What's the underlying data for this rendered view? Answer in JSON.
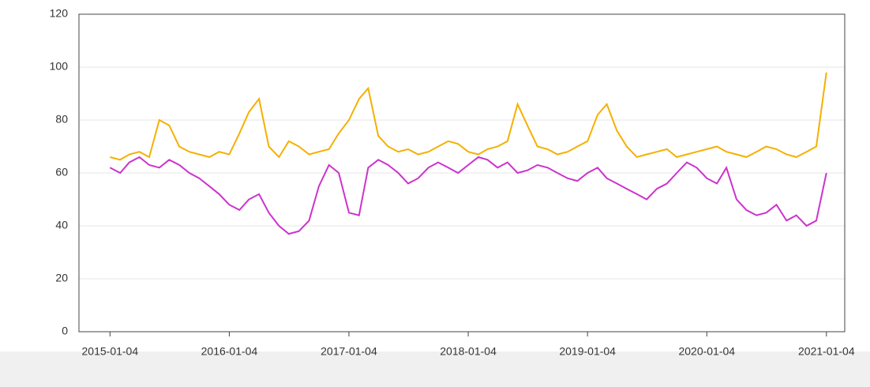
{
  "chart_data": {
    "type": "line",
    "x": [
      "2015-01-04",
      "2015-02-04",
      "2015-03-04",
      "2015-04-04",
      "2015-05-04",
      "2015-06-04",
      "2015-07-04",
      "2015-08-04",
      "2015-09-04",
      "2015-10-04",
      "2015-11-04",
      "2015-12-04",
      "2016-01-04",
      "2016-02-04",
      "2016-03-04",
      "2016-04-04",
      "2016-05-04",
      "2016-06-04",
      "2016-07-04",
      "2016-08-04",
      "2016-09-04",
      "2016-10-04",
      "2016-11-04",
      "2016-12-04",
      "2017-01-04",
      "2017-02-04",
      "2017-03-04",
      "2017-04-04",
      "2017-05-04",
      "2017-06-04",
      "2017-07-04",
      "2017-08-04",
      "2017-09-04",
      "2017-10-04",
      "2017-11-04",
      "2017-12-04",
      "2018-01-04",
      "2018-02-04",
      "2018-03-04",
      "2018-04-04",
      "2018-05-04",
      "2018-06-04",
      "2018-07-04",
      "2018-08-04",
      "2018-09-04",
      "2018-10-04",
      "2018-11-04",
      "2018-12-04",
      "2019-01-04",
      "2019-02-04",
      "2019-03-04",
      "2019-04-04",
      "2019-05-04",
      "2019-06-04",
      "2019-07-04",
      "2019-08-04",
      "2019-09-04",
      "2019-10-04",
      "2019-11-04",
      "2019-12-04",
      "2020-01-04",
      "2020-02-04",
      "2020-03-04",
      "2020-04-04",
      "2020-05-04",
      "2020-06-04",
      "2020-07-04",
      "2020-08-04",
      "2020-09-04",
      "2020-10-04",
      "2020-11-04",
      "2020-12-04",
      "2021-01-04"
    ],
    "series": [
      {
        "color": "#f5b000",
        "values": [
          66,
          65,
          67,
          68,
          66,
          80,
          78,
          70,
          68,
          67,
          66,
          68,
          67,
          75,
          83,
          88,
          70,
          66,
          72,
          70,
          67,
          68,
          69,
          75,
          80,
          88,
          92,
          74,
          70,
          68,
          69,
          67,
          68,
          70,
          72,
          71,
          68,
          67,
          69,
          70,
          72,
          86,
          78,
          70,
          69,
          67,
          68,
          70,
          72,
          82,
          86,
          76,
          70,
          66,
          67,
          68,
          69,
          66,
          67,
          68,
          69,
          70,
          68,
          67,
          66,
          68,
          70,
          69,
          67,
          66,
          68,
          70,
          98
        ]
      },
      {
        "color": "#cc33cc",
        "values": [
          62,
          60,
          64,
          66,
          63,
          62,
          65,
          63,
          60,
          58,
          55,
          52,
          48,
          46,
          50,
          52,
          45,
          40,
          37,
          38,
          42,
          55,
          63,
          60,
          45,
          44,
          62,
          65,
          63,
          60,
          56,
          58,
          62,
          64,
          62,
          60,
          63,
          66,
          65,
          62,
          64,
          60,
          61,
          63,
          62,
          60,
          58,
          57,
          60,
          62,
          58,
          56,
          54,
          52,
          50,
          54,
          56,
          60,
          64,
          62,
          58,
          56,
          62,
          50,
          46,
          44,
          45,
          48,
          42,
          44,
          40,
          42,
          60
        ]
      }
    ],
    "xlim": [
      "2014-10-01",
      "2021-03-01"
    ],
    "xticks": [
      "2015-01-04",
      "2016-01-04",
      "2017-01-04",
      "2018-01-04",
      "2019-01-04",
      "2020-01-04",
      "2021-01-04"
    ],
    "ylim": [
      0,
      120
    ],
    "yticks": [
      0,
      20,
      40,
      60,
      80,
      100,
      120
    ],
    "grid": true
  }
}
